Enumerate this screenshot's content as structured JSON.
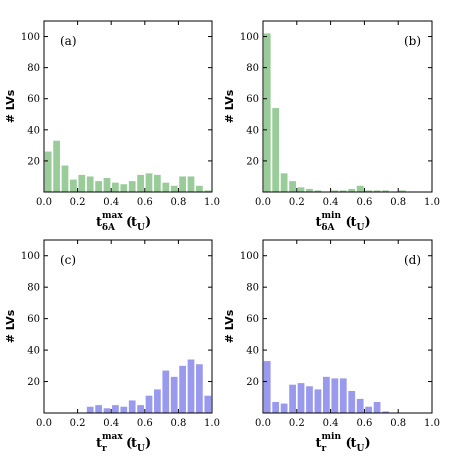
{
  "chart_data": [
    {
      "type": "bar",
      "panel_label": "(a)",
      "ylabel": "# LVs",
      "xlabel": {
        "base": "t",
        "sub": "δA",
        "sup": "max",
        "unit": "t",
        "unit_sub": "U"
      },
      "color": "#99cc99",
      "xlim": [
        0,
        1
      ],
      "ylim": [
        0,
        110
      ],
      "xticks": [
        "0.0",
        "0.2",
        "0.4",
        "0.6",
        "0.8",
        "1.0"
      ],
      "yticks": [
        "20",
        "40",
        "60",
        "80",
        "100"
      ],
      "bin_width": 0.05,
      "bin_starts": [
        0.0,
        0.05,
        0.1,
        0.15,
        0.2,
        0.25,
        0.3,
        0.35,
        0.4,
        0.45,
        0.5,
        0.55,
        0.6,
        0.65,
        0.7,
        0.75,
        0.8,
        0.85,
        0.9,
        0.95
      ],
      "values": [
        26,
        33,
        17,
        8,
        11,
        10,
        7,
        9,
        6,
        5,
        7,
        11,
        12,
        11,
        6,
        4,
        10,
        10,
        4,
        1
      ]
    },
    {
      "type": "bar",
      "panel_label": "(b)",
      "ylabel": "# LVs",
      "xlabel": {
        "base": "t",
        "sub": "δA",
        "sup": "min",
        "unit": "t",
        "unit_sub": "U"
      },
      "color": "#99cc99",
      "xlim": [
        0,
        1
      ],
      "ylim": [
        0,
        110
      ],
      "xticks": [
        "0.0",
        "0.2",
        "0.4",
        "0.6",
        "0.8",
        "1.0"
      ],
      "yticks": [
        "20",
        "40",
        "60",
        "80",
        "100"
      ],
      "bin_width": 0.05,
      "bin_starts": [
        0.0,
        0.05,
        0.1,
        0.15,
        0.2,
        0.25,
        0.3,
        0.35,
        0.4,
        0.45,
        0.5,
        0.55,
        0.6,
        0.65,
        0.7,
        0.75,
        0.8,
        0.85,
        0.9,
        0.95
      ],
      "values": [
        102,
        54,
        12,
        7,
        3,
        2,
        1,
        0,
        1,
        1,
        2,
        4,
        1,
        1,
        1,
        0,
        1,
        0,
        0,
        0
      ]
    },
    {
      "type": "bar",
      "panel_label": "(c)",
      "ylabel": "# LVs",
      "xlabel": {
        "base": "t",
        "sub": "r",
        "sup": "max",
        "unit": "t",
        "unit_sub": "U"
      },
      "color": "#9999ee",
      "xlim": [
        0,
        1
      ],
      "ylim": [
        0,
        110
      ],
      "xticks": [
        "0.0",
        "0.2",
        "0.4",
        "0.6",
        "0.8",
        "1.0"
      ],
      "yticks": [
        "20",
        "40",
        "60",
        "80",
        "100"
      ],
      "bin_width": 0.05,
      "bin_starts": [
        0.0,
        0.05,
        0.1,
        0.15,
        0.2,
        0.25,
        0.3,
        0.35,
        0.4,
        0.45,
        0.5,
        0.55,
        0.6,
        0.65,
        0.7,
        0.75,
        0.8,
        0.85,
        0.9,
        0.95
      ],
      "values": [
        0,
        0,
        0,
        0,
        0,
        4,
        5,
        3,
        5,
        4,
        8,
        5,
        11,
        15,
        27,
        23,
        30,
        34,
        31,
        11
      ]
    },
    {
      "type": "bar",
      "panel_label": "(d)",
      "ylabel": "# LVs",
      "xlabel": {
        "base": "t",
        "sub": "r",
        "sup": "min",
        "unit": "t",
        "unit_sub": "U"
      },
      "color": "#9999ee",
      "xlim": [
        0,
        1
      ],
      "ylim": [
        0,
        110
      ],
      "xticks": [
        "0.0",
        "0.2",
        "0.4",
        "0.6",
        "0.8",
        "1.0"
      ],
      "yticks": [
        "20",
        "40",
        "60",
        "80",
        "100"
      ],
      "bin_width": 0.05,
      "bin_starts": [
        0.0,
        0.05,
        0.1,
        0.15,
        0.2,
        0.25,
        0.3,
        0.35,
        0.4,
        0.45,
        0.5,
        0.55,
        0.6,
        0.65,
        0.7,
        0.75,
        0.8,
        0.85,
        0.9,
        0.95
      ],
      "values": [
        33,
        7,
        6,
        18,
        19,
        17,
        15,
        23,
        22,
        22,
        14,
        9,
        4,
        7,
        1,
        0,
        0,
        0,
        0,
        0
      ]
    }
  ]
}
